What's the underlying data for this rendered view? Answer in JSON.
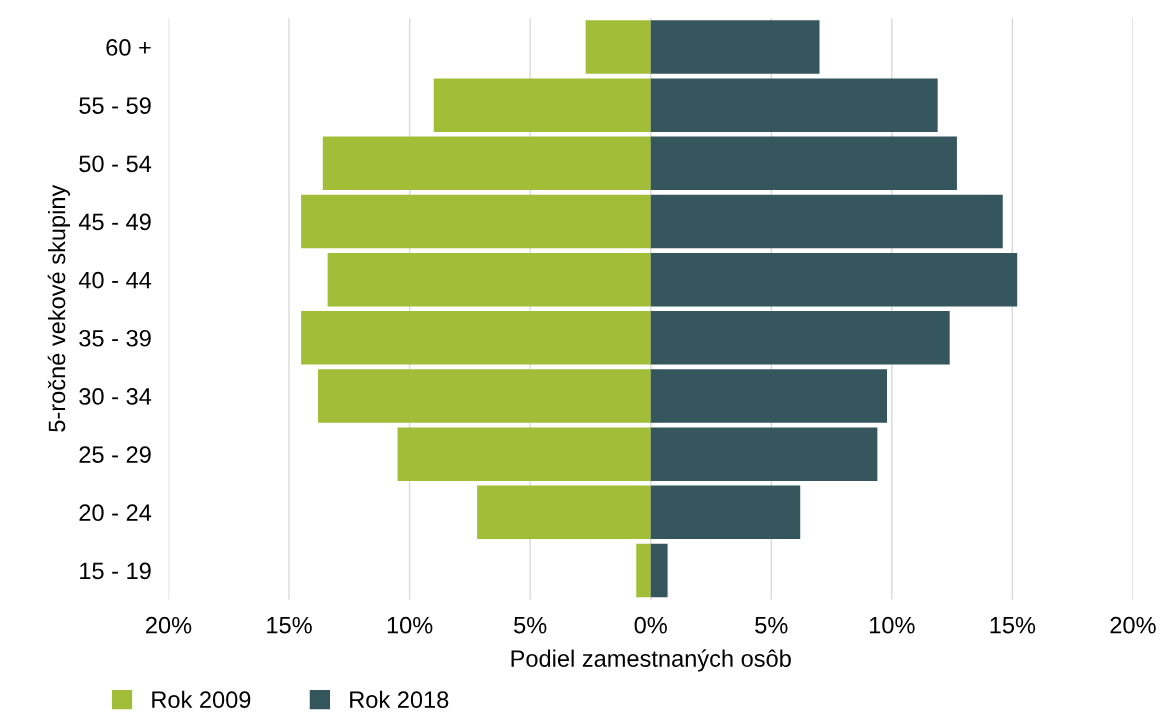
{
  "chart_data": {
    "type": "bar",
    "orientation": "horizontal",
    "xlabel": "Podiel zamestnaných osôb",
    "ylabel": "5-ročné vekové skupiny",
    "categories": [
      "60 +",
      "55 - 59",
      "50 - 54",
      "45 - 49",
      "40 - 44",
      "35 - 39",
      "30 - 34",
      "25 - 29",
      "20 - 24",
      "15 - 19"
    ],
    "series": [
      {
        "name": "Rok 2009",
        "color": "#a2bd38",
        "values": [
          -2.7,
          -9.0,
          -13.6,
          -14.5,
          -13.4,
          -14.5,
          -13.8,
          -10.5,
          -7.2,
          -0.6
        ]
      },
      {
        "name": "Rok 2018",
        "color": "#34565c",
        "values": [
          7.0,
          11.9,
          12.7,
          14.6,
          15.2,
          12.4,
          9.8,
          9.4,
          6.2,
          0.7
        ]
      }
    ],
    "xlim": [
      -20,
      20
    ],
    "xticks": [
      {
        "value": -20,
        "label": "20%"
      },
      {
        "value": -15,
        "label": "15%"
      },
      {
        "value": -10,
        "label": "10%"
      },
      {
        "value": -5,
        "label": "5%"
      },
      {
        "value": 0,
        "label": "0%"
      },
      {
        "value": 5,
        "label": "5%"
      },
      {
        "value": 10,
        "label": "10%"
      },
      {
        "value": 15,
        "label": "15%"
      },
      {
        "value": 20,
        "label": "20%"
      }
    ],
    "grid": "x",
    "stacked": true,
    "legend": "bottom left"
  }
}
